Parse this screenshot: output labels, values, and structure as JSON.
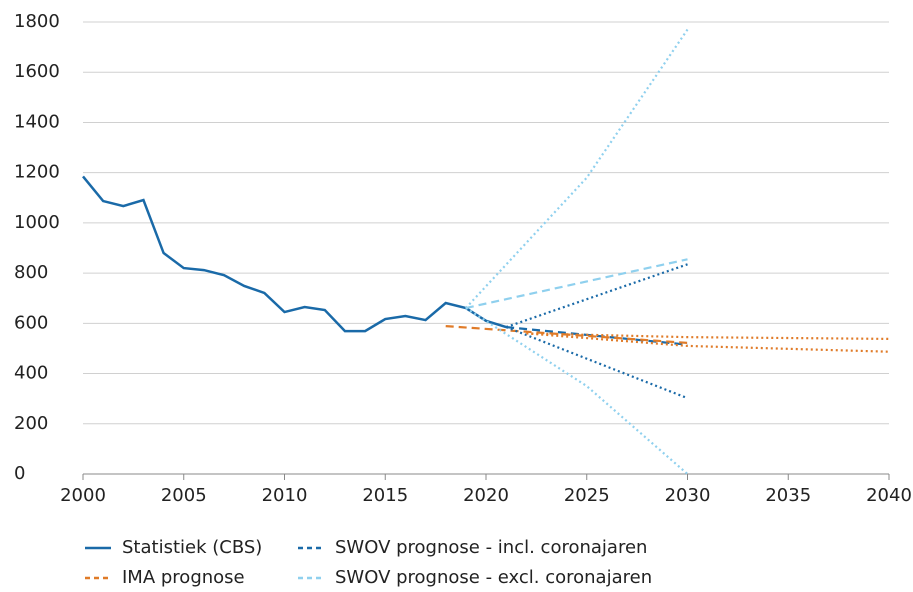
{
  "chart_data": {
    "type": "line",
    "xlim": [
      2000,
      2040
    ],
    "xticks": [
      2000,
      2005,
      2010,
      2015,
      2020,
      2025,
      2030,
      2035,
      2040
    ],
    "ylim": [
      0,
      1800
    ],
    "yticks": [
      0,
      200,
      400,
      600,
      800,
      1000,
      1200,
      1400,
      1600,
      1800
    ],
    "grid": true,
    "series": [
      {
        "name": "Statistiek (CBS)",
        "color": "#1a6aa8",
        "dash": "solid",
        "x": [
          2000,
          2001,
          2002,
          2003,
          2004,
          2005,
          2006,
          2007,
          2008,
          2009,
          2010,
          2011,
          2012,
          2013,
          2014,
          2015,
          2016,
          2017,
          2018,
          2019,
          2020,
          2021
        ],
        "values": [
          1185,
          1087,
          1067,
          1091,
          880,
          820,
          812,
          792,
          749,
          721,
          645,
          665,
          653,
          569,
          569,
          617,
          629,
          613,
          681,
          661,
          610,
          585
        ]
      },
      {
        "name": "SWOV prognose - incl. coronajaren",
        "color": "#1a6aa8",
        "dash": "dashed",
        "x": [
          2021,
          2030
        ],
        "values": [
          585,
          515
        ]
      },
      {
        "name": "IMA prognose",
        "color": "#e07b28",
        "dash": "dashed",
        "x": [
          2018,
          2030
        ],
        "values": [
          589,
          522
        ]
      },
      {
        "name": "SWOV prognose - excl. coronajaren",
        "color": "#8fd0ee",
        "dash": "dashed",
        "x": [
          2019,
          2030
        ],
        "values": [
          661,
          855
        ]
      },
      {
        "color": "#1a6aa8",
        "dash": "dotted",
        "x": [
          2021,
          2030
        ],
        "values": [
          585,
          835
        ]
      },
      {
        "color": "#1a6aa8",
        "dash": "dotted",
        "x": [
          2021,
          2030
        ],
        "values": [
          585,
          302
        ]
      },
      {
        "color": "#e07b28",
        "dash": "dotted",
        "x": [
          2022,
          2030,
          2040
        ],
        "values": [
          560,
          545,
          538
        ]
      },
      {
        "color": "#e07b28",
        "dash": "dotted",
        "x": [
          2022,
          2030,
          2040
        ],
        "values": [
          560,
          510,
          487
        ]
      },
      {
        "color": "#8fd0ee",
        "dash": "dotted",
        "x": [
          2019,
          2025,
          2030
        ],
        "values": [
          661,
          1180,
          1770
        ]
      },
      {
        "color": "#8fd0ee",
        "dash": "dotted",
        "x": [
          2019,
          2025,
          2030
        ],
        "values": [
          661,
          350,
          0
        ]
      }
    ]
  }
}
